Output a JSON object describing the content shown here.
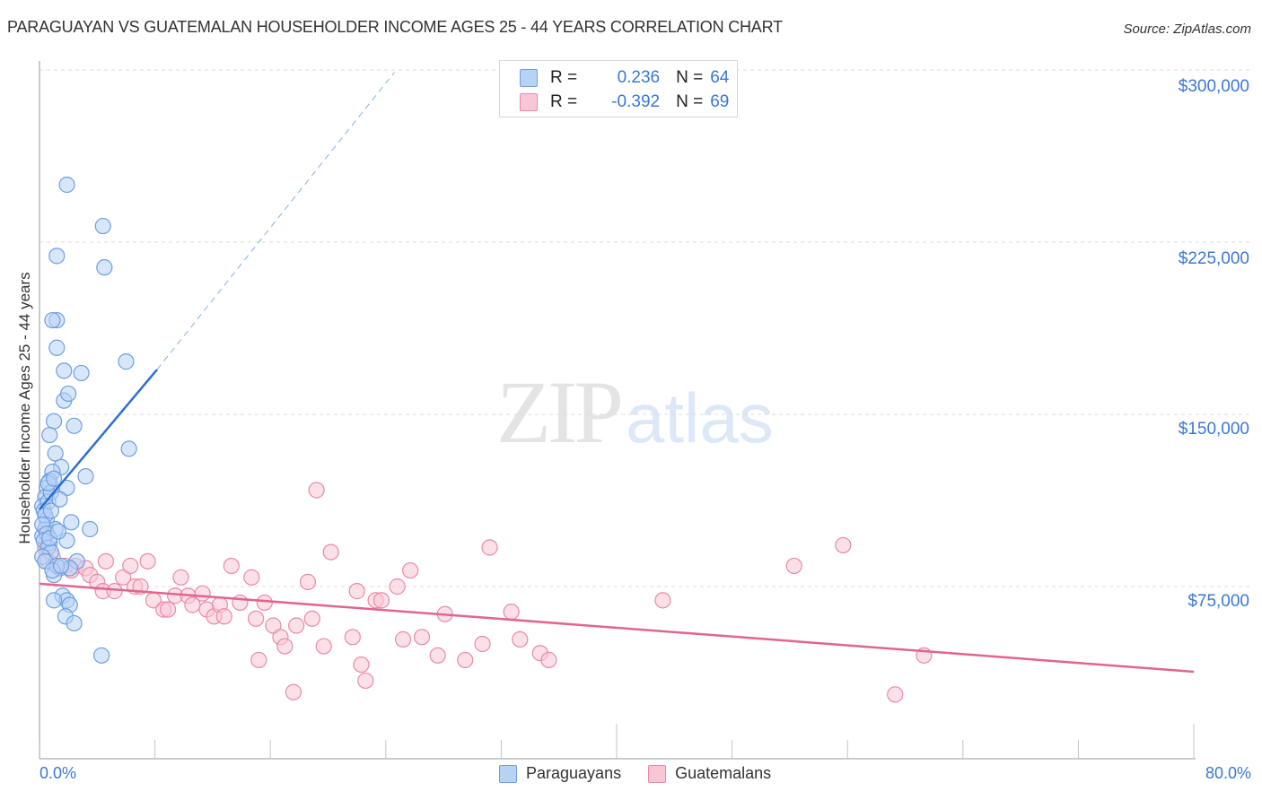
{
  "header": {
    "title": "PARAGUAYAN VS GUATEMALAN HOUSEHOLDER INCOME AGES 25 - 44 YEARS CORRELATION CHART",
    "source": "Source: ZipAtlas.com"
  },
  "watermark": {
    "zip": "ZIP",
    "atlas": "atlas"
  },
  "stats_legend": {
    "rows": [
      {
        "r_label": "R =",
        "r_value": "0.236",
        "n_label": "N =",
        "n_value": "64"
      },
      {
        "r_label": "R =",
        "r_value": "-0.392",
        "n_label": "N =",
        "n_value": "69"
      }
    ]
  },
  "axes": {
    "ylabel": "Householder Income Ages 25 - 44 years",
    "yticks": [
      "$300,000",
      "$225,000",
      "$150,000",
      "$75,000"
    ],
    "xticks": {
      "left": "0.0%",
      "right": "80.0%"
    }
  },
  "bottom_legend": {
    "items": [
      "Paraguayans",
      "Guatemalans"
    ]
  },
  "colors": {
    "blue_fill": "#b8d2f5",
    "blue_stroke": "#6d9fe0",
    "blue_line": "#2d6fd1",
    "pink_fill": "#f9c6d6",
    "pink_stroke": "#e989a8",
    "pink_line": "#e2648f",
    "tick_text": "#3a78d4"
  },
  "chart_data": {
    "type": "scatter",
    "title": "PARAGUAYAN VS GUATEMALAN HOUSEHOLDER INCOME AGES 25 - 44 YEARS CORRELATION CHART",
    "xlabel": "",
    "ylabel": "Householder Income Ages 25 - 44 years",
    "xlim": [
      0,
      80
    ],
    "ylim": [
      0,
      300000
    ],
    "x_unit": "%",
    "y_ticks": [
      75000,
      150000,
      225000,
      300000
    ],
    "x_tick_labels": [
      "0.0%",
      "80.0%"
    ],
    "grid": true,
    "legend_position": "bottom",
    "series": [
      {
        "name": "Paraguayans",
        "r": 0.236,
        "n": 64,
        "color": "#6d9fe0",
        "trend": {
          "x": [
            0,
            8.15
          ],
          "y": [
            108600,
            169500
          ],
          "extended_dashed": {
            "x": [
              8.15,
              24.6
            ],
            "y": [
              169500,
              299000
            ]
          }
        },
        "points": [
          [
            1.9,
            250000
          ],
          [
            4.4,
            232000
          ],
          [
            1.2,
            219000
          ],
          [
            4.5,
            214000
          ],
          [
            1.2,
            191000
          ],
          [
            0.9,
            191000
          ],
          [
            1.2,
            179000
          ],
          [
            6.0,
            173000
          ],
          [
            1.7,
            169000
          ],
          [
            2.9,
            168000
          ],
          [
            1.7,
            156000
          ],
          [
            2.0,
            159000
          ],
          [
            1.0,
            147000
          ],
          [
            2.4,
            145000
          ],
          [
            0.7,
            141000
          ],
          [
            6.2,
            135000
          ],
          [
            1.1,
            133000
          ],
          [
            1.5,
            127000
          ],
          [
            3.2,
            123000
          ],
          [
            0.9,
            125000
          ],
          [
            1.9,
            118000
          ],
          [
            0.7,
            121000
          ],
          [
            0.5,
            118000
          ],
          [
            0.4,
            114000
          ],
          [
            0.2,
            110000
          ],
          [
            0.5,
            104000
          ],
          [
            2.2,
            103000
          ],
          [
            0.4,
            100000
          ],
          [
            1.1,
            100000
          ],
          [
            3.5,
            100000
          ],
          [
            0.2,
            97000
          ],
          [
            0.7,
            94000
          ],
          [
            1.9,
            95000
          ],
          [
            2.6,
            86000
          ],
          [
            1.4,
            83000
          ],
          [
            2.1,
            83000
          ],
          [
            1.0,
            80000
          ],
          [
            1.6,
            71000
          ],
          [
            1.9,
            69000
          ],
          [
            1.0,
            69000
          ],
          [
            2.1,
            67000
          ],
          [
            1.8,
            62000
          ],
          [
            2.4,
            59000
          ],
          [
            4.3,
            45000
          ],
          [
            0.3,
            108000
          ],
          [
            0.6,
            112000
          ],
          [
            0.8,
            116000
          ],
          [
            0.4,
            106000
          ],
          [
            0.2,
            102000
          ],
          [
            0.5,
            98000
          ],
          [
            0.3,
            95000
          ],
          [
            0.6,
            92000
          ],
          [
            0.8,
            90000
          ],
          [
            0.2,
            88000
          ],
          [
            0.4,
            86000
          ],
          [
            1.2,
            84000
          ],
          [
            0.9,
            82000
          ],
          [
            1.5,
            84000
          ],
          [
            0.7,
            96000
          ],
          [
            1.3,
            99000
          ],
          [
            0.6,
            120000
          ],
          [
            1.0,
            122000
          ],
          [
            0.8,
            108000
          ],
          [
            1.4,
            113000
          ]
        ]
      },
      {
        "name": "Guatemalans",
        "r": -0.392,
        "n": 69,
        "color": "#e989a8",
        "trend": {
          "x": [
            0,
            80
          ],
          "y": [
            76200,
            37900
          ]
        },
        "points": [
          [
            0.4,
            92000
          ],
          [
            0.9,
            88000
          ],
          [
            2.5,
            84000
          ],
          [
            3.2,
            83000
          ],
          [
            3.5,
            80000
          ],
          [
            4.0,
            77000
          ],
          [
            4.6,
            86000
          ],
          [
            4.4,
            73000
          ],
          [
            5.2,
            73000
          ],
          [
            5.8,
            79000
          ],
          [
            6.3,
            84000
          ],
          [
            6.6,
            75000
          ],
          [
            7.0,
            75000
          ],
          [
            7.5,
            86000
          ],
          [
            7.9,
            69000
          ],
          [
            8.6,
            65000
          ],
          [
            8.9,
            65000
          ],
          [
            9.4,
            71000
          ],
          [
            9.8,
            79000
          ],
          [
            10.3,
            71000
          ],
          [
            10.6,
            67000
          ],
          [
            11.3,
            72000
          ],
          [
            11.6,
            65000
          ],
          [
            12.1,
            62000
          ],
          [
            12.5,
            67000
          ],
          [
            12.8,
            62000
          ],
          [
            13.3,
            84000
          ],
          [
            13.9,
            68000
          ],
          [
            14.7,
            79000
          ],
          [
            15.0,
            61000
          ],
          [
            15.6,
            68000
          ],
          [
            15.2,
            43000
          ],
          [
            16.2,
            58000
          ],
          [
            16.7,
            53000
          ],
          [
            17.0,
            49000
          ],
          [
            17.6,
            29000
          ],
          [
            17.8,
            58000
          ],
          [
            18.6,
            77000
          ],
          [
            18.9,
            61000
          ],
          [
            19.2,
            117000
          ],
          [
            19.7,
            49000
          ],
          [
            20.2,
            90000
          ],
          [
            21.7,
            53000
          ],
          [
            22.0,
            73000
          ],
          [
            22.3,
            41000
          ],
          [
            22.6,
            34000
          ],
          [
            23.3,
            69000
          ],
          [
            23.7,
            69000
          ],
          [
            24.8,
            75000
          ],
          [
            25.2,
            52000
          ],
          [
            25.7,
            82000
          ],
          [
            26.5,
            53000
          ],
          [
            27.6,
            45000
          ],
          [
            28.1,
            63000
          ],
          [
            29.5,
            43000
          ],
          [
            30.7,
            50000
          ],
          [
            31.2,
            92000
          ],
          [
            32.7,
            64000
          ],
          [
            33.3,
            52000
          ],
          [
            34.7,
            46000
          ],
          [
            35.3,
            43000
          ],
          [
            43.2,
            69000
          ],
          [
            52.3,
            84000
          ],
          [
            55.7,
            93000
          ],
          [
            59.3,
            28000
          ],
          [
            61.3,
            45000
          ],
          [
            0.6,
            86000
          ],
          [
            1.8,
            84000
          ],
          [
            2.2,
            82000
          ]
        ]
      }
    ]
  }
}
